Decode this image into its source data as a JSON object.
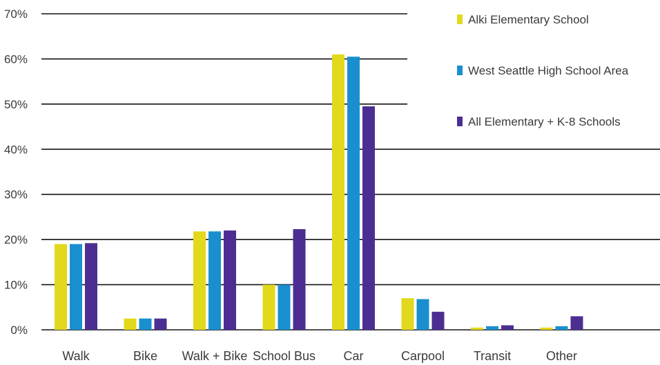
{
  "chart_data": {
    "type": "bar",
    "title": "",
    "xlabel": "",
    "ylabel": "",
    "ylim": [
      0,
      70
    ],
    "yticks": [
      "0%",
      "10%",
      "20%",
      "30%",
      "40%",
      "50%",
      "60%",
      "70%"
    ],
    "grid": true,
    "legend_position": "top-right",
    "categories": [
      "Walk",
      "Bike",
      "Walk + Bike",
      "School Bus",
      "Car",
      "Carpool",
      "Transit",
      "Other"
    ],
    "series": [
      {
        "name": "Alki Elementary School",
        "color": "#e2d81c",
        "values": [
          19,
          2.5,
          21.8,
          10,
          61,
          7,
          0.5,
          0.5
        ]
      },
      {
        "name": "West Seattle  High School  Area",
        "color": "#1a8fd0",
        "values": [
          19,
          2.5,
          21.8,
          10,
          60.5,
          6.8,
          0.8,
          0.8
        ]
      },
      {
        "name": "All Elementary + K-8 Schools",
        "color": "#4c2e92",
        "values": [
          19.2,
          2.5,
          22,
          22.3,
          49.5,
          4,
          1,
          3
        ]
      }
    ]
  }
}
